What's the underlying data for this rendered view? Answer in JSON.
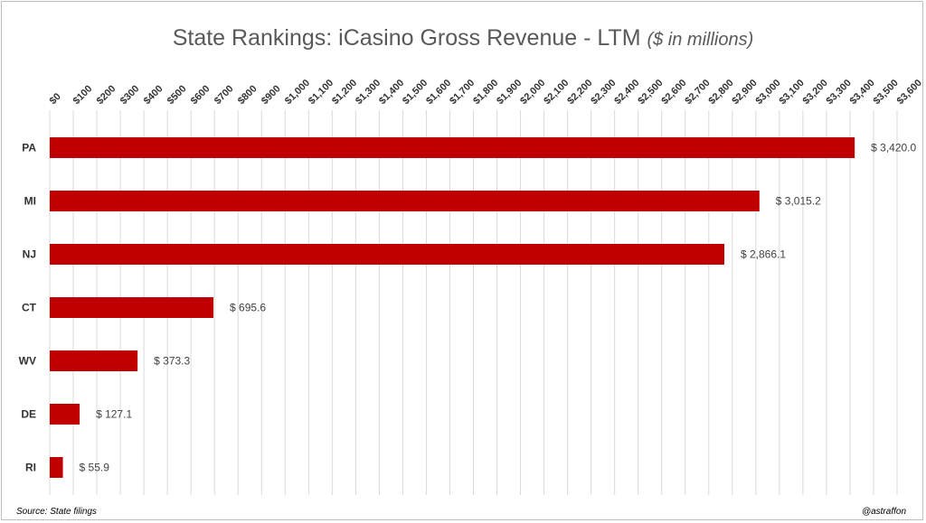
{
  "chart_data": {
    "type": "bar",
    "orientation": "horizontal",
    "title": "State Rankings: iCasino Gross Revenue - LTM",
    "title_unit": "($ in millions)",
    "categories": [
      "PA",
      "MI",
      "NJ",
      "CT",
      "WV",
      "DE",
      "RI"
    ],
    "values": [
      3420.0,
      3015.2,
      2866.1,
      695.6,
      373.3,
      127.1,
      55.9
    ],
    "data_labels": [
      "$ 3,420.0",
      "$ 3,015.2",
      "$ 2,866.1",
      "$ 695.6",
      "$ 373.3",
      "$ 127.1",
      "$ 55.9"
    ],
    "xlim": [
      0,
      3600
    ],
    "x_ticks": [
      0,
      100,
      200,
      300,
      400,
      500,
      600,
      700,
      800,
      900,
      1000,
      1100,
      1200,
      1300,
      1400,
      1500,
      1600,
      1700,
      1800,
      1900,
      2000,
      2100,
      2200,
      2300,
      2400,
      2500,
      2600,
      2700,
      2800,
      2900,
      3000,
      3100,
      3200,
      3300,
      3400,
      3500,
      3600
    ],
    "x_tick_labels": [
      "$0",
      "$100",
      "$200",
      "$300",
      "$400",
      "$500",
      "$600",
      "$700",
      "$800",
      "$900",
      "$1,000",
      "$1,100",
      "$1,200",
      "$1,300",
      "$1,400",
      "$1,500",
      "$1,600",
      "$1,700",
      "$1,800",
      "$1,900",
      "$2,000",
      "$2,100",
      "$2,200",
      "$2,300",
      "$2,400",
      "$2,500",
      "$2,600",
      "$2,700",
      "$2,800",
      "$2,900",
      "$3,000",
      "$3,100",
      "$3,200",
      "$3,300",
      "$3,400",
      "$3,500",
      "$3,600"
    ],
    "x_axis_position": "top",
    "grid": true,
    "bar_color": "#c00000",
    "grid_color": "#d9d9d9"
  },
  "footer": {
    "source": "Source: State filings",
    "credit": "@astraffon"
  }
}
